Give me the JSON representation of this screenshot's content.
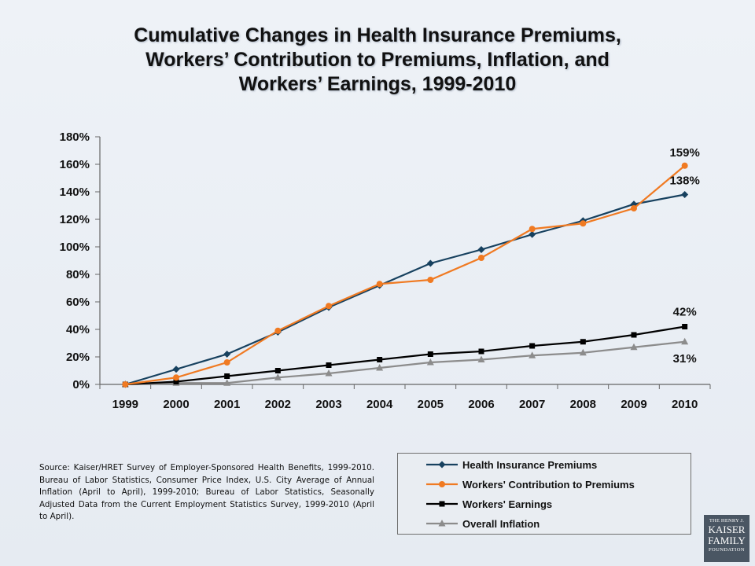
{
  "title_lines": [
    "Cumulative Changes in Health Insurance Premiums,",
    "Workers’ Contribution to Premiums, Inflation, and",
    "Workers’ Earnings, 1999-2010"
  ],
  "source_text": "Source: Kaiser/HRET Survey of Employer-Sponsored Health Benefits, 1999-2010.  Bureau of Labor Statistics, Consumer Price Index, U.S. City Average of Annual Inflation (April to April), 1999-2010; Bureau of Labor Statistics, Seasonally Adjusted Data from the Current Employment Statistics Survey, 1999-2010 (April to April).",
  "logo": {
    "line1": "THE HENRY J.",
    "line2": "KAISER",
    "line3": "FAMILY",
    "line4": "FOUNDATION"
  },
  "chart_data": {
    "type": "line",
    "title": "Cumulative Changes in Health Insurance Premiums, Workers’ Contribution to Premiums, Inflation, and Workers’ Earnings, 1999-2010",
    "xlabel": "",
    "ylabel": "",
    "x": [
      "1999",
      "2000",
      "2001",
      "2002",
      "2003",
      "2004",
      "2005",
      "2006",
      "2007",
      "2008",
      "2009",
      "2010"
    ],
    "ylim": [
      0,
      180
    ],
    "yticks": [
      0,
      20,
      40,
      60,
      80,
      100,
      120,
      140,
      160,
      180
    ],
    "ytick_labels": [
      "0%",
      "20%",
      "40%",
      "60%",
      "80%",
      "100%",
      "120%",
      "140%",
      "160%",
      "180%"
    ],
    "grid": false,
    "legend_position": "bottom-right",
    "series": [
      {
        "name": "Health Insurance Premiums",
        "color": "#17415f",
        "marker": "diamond",
        "values": [
          0,
          11,
          22,
          38,
          56,
          72,
          88,
          98,
          109,
          119,
          131,
          138
        ],
        "end_label": "138%"
      },
      {
        "name": "Workers' Contribution to Premiums",
        "color": "#f07a22",
        "marker": "circle",
        "values": [
          0,
          5,
          16,
          39,
          57,
          73,
          76,
          92,
          113,
          117,
          128,
          159
        ],
        "end_label": "159%"
      },
      {
        "name": "Workers' Earnings",
        "color": "#000000",
        "marker": "square",
        "values": [
          0,
          2,
          6,
          10,
          14,
          18,
          22,
          24,
          28,
          31,
          36,
          42
        ],
        "end_label": "42%"
      },
      {
        "name": "Overall Inflation",
        "color": "#8c8c8c",
        "marker": "triangle",
        "values": [
          0,
          1,
          1,
          5,
          8,
          12,
          16,
          18,
          21,
          23,
          27,
          31
        ],
        "end_label": "31%"
      }
    ]
  }
}
